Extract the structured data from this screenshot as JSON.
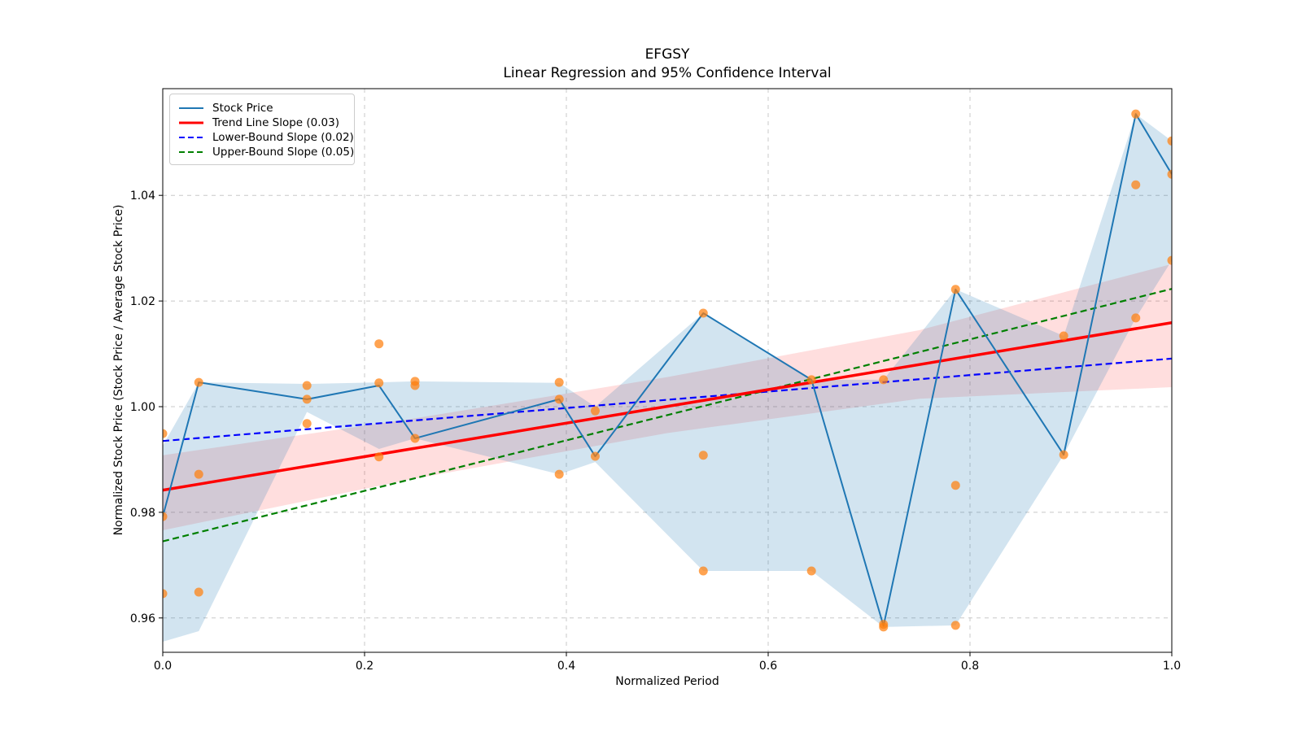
{
  "title": {
    "line1": "EFGSY",
    "line2": "Linear Regression and 95% Confidence Interval"
  },
  "axes": {
    "xlabel": "Normalized Period",
    "ylabel": "Normalized Stock Price (Stock Price / Average Stock Price)",
    "xlim": [
      0.0,
      1.0
    ],
    "ylim": [
      0.9535,
      1.0602
    ],
    "xticks": [
      "0.0",
      "0.2",
      "0.4",
      "0.6",
      "0.8",
      "1.0"
    ],
    "yticks": [
      "0.96",
      "0.98",
      "1.00",
      "1.02",
      "1.04"
    ],
    "grid": "dashed"
  },
  "legend": {
    "position": "upper-left",
    "items": [
      {
        "label": "Stock Price",
        "color": "#1f77b4",
        "style": "solid",
        "width": 2
      },
      {
        "label": "Trend Line Slope (0.03)",
        "color": "#ff0000",
        "style": "solid",
        "width": 3
      },
      {
        "label": "Lower-Bound Slope (0.02)",
        "color": "#0000ff",
        "style": "dashed",
        "width": 2
      },
      {
        "label": "Upper-Bound Slope (0.05)",
        "color": "#008000",
        "style": "dashed",
        "width": 2
      }
    ]
  },
  "colors": {
    "stock_line": "#1f77b4",
    "scatter": "#ff7f0e",
    "scatter_alpha": 0.72,
    "trend_line": "#ff0000",
    "lower_bound_line": "#0000ff",
    "upper_bound_line": "#008000",
    "stock_band": "#1f77b4",
    "stock_band_alpha": 0.2,
    "trend_band": "#ff0000",
    "trend_band_alpha": 0.13,
    "grid": "#c8c8c8",
    "spine": "#000000"
  },
  "chart_data": {
    "type": "line",
    "xlabel": "Normalized Period",
    "ylabel": "Normalized Stock Price (Stock Price / Average Stock Price)",
    "x": [
      0.0,
      0.0357,
      0.1429,
      0.2143,
      0.25,
      0.3929,
      0.4286,
      0.5357,
      0.6429,
      0.7143,
      0.7857,
      0.8929,
      0.9643,
      1.0
    ],
    "series": [
      {
        "name": "Stock Price",
        "values": [
          0.9792,
          1.0046,
          1.0014,
          1.004,
          0.994,
          1.0014,
          0.9906,
          1.0177,
          1.0051,
          0.9585,
          1.0222,
          0.9909,
          1.0554,
          1.044
        ]
      }
    ],
    "stock_band": {
      "upper": [
        0.9926,
        1.0046,
        1.0043,
        1.0046,
        1.0048,
        1.0045,
        1.0,
        1.0177,
        1.0051,
        1.0051,
        1.0222,
        1.0134,
        1.0554,
        1.0503
      ],
      "lower": [
        0.9555,
        0.9575,
        0.999,
        0.992,
        0.994,
        0.9872,
        0.9895,
        0.9689,
        0.9689,
        0.9583,
        0.9586,
        0.9909,
        1.0168,
        1.0277
      ]
    },
    "scatter_points": [
      [
        0.0,
        0.9949
      ],
      [
        0.0,
        0.9792
      ],
      [
        0.0,
        0.9646
      ],
      [
        0.0357,
        1.0046
      ],
      [
        0.0357,
        0.9872
      ],
      [
        0.0357,
        0.9649
      ],
      [
        0.1429,
        1.004
      ],
      [
        0.1429,
        1.0014
      ],
      [
        0.1429,
        0.9968
      ],
      [
        0.2143,
        1.0119
      ],
      [
        0.2143,
        1.0045
      ],
      [
        0.2143,
        0.9905
      ],
      [
        0.25,
        1.0048
      ],
      [
        0.25,
        1.004
      ],
      [
        0.25,
        0.994
      ],
      [
        0.3929,
        1.0046
      ],
      [
        0.3929,
        1.0014
      ],
      [
        0.3929,
        0.9872
      ],
      [
        0.4286,
        0.9992
      ],
      [
        0.4286,
        0.9906
      ],
      [
        0.5357,
        1.0177
      ],
      [
        0.5357,
        0.9908
      ],
      [
        0.5357,
        0.9689
      ],
      [
        0.6429,
        1.0051
      ],
      [
        0.6429,
        0.9689
      ],
      [
        0.7143,
        1.0051
      ],
      [
        0.7143,
        0.9588
      ],
      [
        0.7143,
        0.9583
      ],
      [
        0.7857,
        1.0222
      ],
      [
        0.7857,
        0.9851
      ],
      [
        0.7857,
        0.9586
      ],
      [
        0.8929,
        1.0134
      ],
      [
        0.8929,
        0.9909
      ],
      [
        0.9643,
        1.0554
      ],
      [
        0.9643,
        1.042
      ],
      [
        0.9643,
        1.0168
      ],
      [
        1.0,
        1.0503
      ],
      [
        1.0,
        1.044
      ],
      [
        1.0,
        1.0277
      ]
    ],
    "trend_line": {
      "name": "Trend Line Slope (0.03)",
      "slope": 0.03,
      "y_start": 0.9842,
      "y_end": 1.0159
    },
    "lower_bound_line": {
      "name": "Lower-Bound Slope (0.02)",
      "slope": 0.02,
      "y_start": 0.9935,
      "y_end": 1.0091
    },
    "upper_bound_line": {
      "name": "Upper-Bound Slope (0.05)",
      "slope": 0.05,
      "y_start": 0.9745,
      "y_end": 1.0223
    },
    "trend_band": {
      "x": [
        0.0,
        0.25,
        0.5,
        0.75,
        1.0
      ],
      "upper": [
        0.9908,
        0.9978,
        1.0056,
        1.0145,
        1.027
      ],
      "lower": [
        0.9766,
        0.9864,
        0.995,
        1.0015,
        1.0037
      ]
    }
  }
}
